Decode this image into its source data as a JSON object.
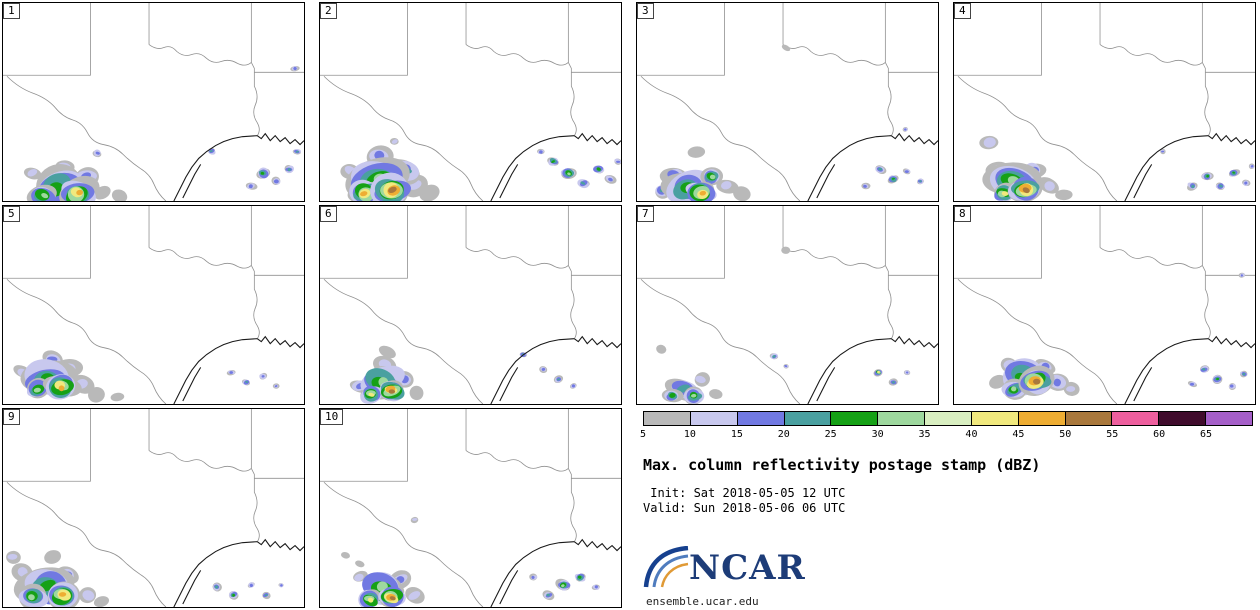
{
  "figure": {
    "title": "Max. column reflectivity postage stamp (dBZ)",
    "init_label": " Init: Sat 2018-05-05 12 UTC",
    "valid_label": "Valid: Sun 2018-05-06 06 UTC",
    "site_url": "ensemble.ucar.edu",
    "logo_text": "NCAR"
  },
  "colorbar": {
    "units": "dBZ",
    "tick_labels": [
      "5",
      "10",
      "15",
      "20",
      "25",
      "30",
      "35",
      "40",
      "45",
      "50",
      "55",
      "60",
      "65"
    ],
    "colors": [
      "#b9b9b9",
      "#c8c8ee",
      "#7179e2",
      "#4aa0a0",
      "#16a116",
      "#9ed89e",
      "#d9efc1",
      "#f1e97e",
      "#eead33",
      "#a9783c",
      "#ee5f9e",
      "#400c2c",
      "#a55fc8"
    ]
  },
  "panels": [
    {
      "label": "1",
      "cells": [
        [
          55,
          185,
          26,
          4
        ],
        [
          75,
          192,
          18,
          7
        ],
        [
          40,
          195,
          14,
          5
        ],
        [
          85,
          175,
          12,
          2
        ],
        [
          62,
          165,
          10,
          1
        ],
        [
          100,
          192,
          10,
          0
        ],
        [
          118,
          196,
          8,
          0
        ],
        [
          95,
          152,
          5,
          2
        ],
        [
          30,
          172,
          9,
          1
        ],
        [
          210,
          150,
          4,
          3
        ],
        [
          262,
          172,
          7,
          4
        ],
        [
          275,
          180,
          5,
          2
        ],
        [
          288,
          168,
          5,
          3
        ],
        [
          250,
          185,
          5,
          2
        ],
        [
          294,
          66,
          4,
          2
        ],
        [
          296,
          150,
          4,
          3
        ]
      ]
    },
    {
      "label": "2",
      "cells": [
        [
          58,
          180,
          30,
          5
        ],
        [
          72,
          190,
          20,
          8
        ],
        [
          45,
          192,
          16,
          7
        ],
        [
          85,
          170,
          14,
          3
        ],
        [
          60,
          155,
          12,
          2
        ],
        [
          95,
          185,
          12,
          1
        ],
        [
          30,
          170,
          10,
          1
        ],
        [
          110,
          192,
          9,
          0
        ],
        [
          75,
          140,
          5,
          1
        ],
        [
          235,
          160,
          6,
          4
        ],
        [
          250,
          172,
          7,
          5
        ],
        [
          265,
          182,
          6,
          3
        ],
        [
          280,
          168,
          6,
          4
        ],
        [
          292,
          178,
          5,
          2
        ],
        [
          300,
          160,
          4,
          2
        ],
        [
          222,
          150,
          4,
          2
        ]
      ]
    },
    {
      "label": "3",
      "cells": [
        [
          50,
          185,
          24,
          4
        ],
        [
          65,
          192,
          15,
          7
        ],
        [
          38,
          175,
          12,
          2
        ],
        [
          75,
          175,
          10,
          5
        ],
        [
          90,
          185,
          10,
          1
        ],
        [
          60,
          150,
          9,
          0
        ],
        [
          105,
          192,
          8,
          0
        ],
        [
          25,
          190,
          8,
          3
        ],
        [
          245,
          168,
          5,
          3
        ],
        [
          258,
          178,
          5,
          4
        ],
        [
          272,
          170,
          4,
          2
        ],
        [
          285,
          180,
          4,
          3
        ],
        [
          230,
          185,
          4,
          2
        ],
        [
          270,
          128,
          3,
          2
        ],
        [
          150,
          45,
          4,
          0
        ]
      ]
    },
    {
      "label": "4",
      "cells": [
        [
          35,
          140,
          10,
          1
        ],
        [
          60,
          180,
          26,
          5
        ],
        [
          72,
          188,
          16,
          8
        ],
        [
          50,
          192,
          12,
          6
        ],
        [
          80,
          170,
          12,
          2
        ],
        [
          95,
          185,
          10,
          1
        ],
        [
          45,
          168,
          10,
          1
        ],
        [
          110,
          194,
          8,
          0
        ],
        [
          240,
          185,
          5,
          3
        ],
        [
          255,
          175,
          5,
          4
        ],
        [
          268,
          185,
          5,
          3
        ],
        [
          282,
          172,
          5,
          4
        ],
        [
          294,
          182,
          4,
          2
        ],
        [
          300,
          165,
          3,
          2
        ],
        [
          210,
          150,
          3,
          2
        ]
      ]
    },
    {
      "label": "5",
      "cells": [
        [
          45,
          175,
          26,
          4
        ],
        [
          58,
          182,
          16,
          7
        ],
        [
          35,
          185,
          12,
          5
        ],
        [
          65,
          165,
          12,
          2
        ],
        [
          50,
          155,
          10,
          2
        ],
        [
          80,
          180,
          10,
          1
        ],
        [
          95,
          190,
          9,
          0
        ],
        [
          115,
          193,
          7,
          0
        ],
        [
          20,
          168,
          8,
          1
        ],
        [
          230,
          168,
          4,
          2
        ],
        [
          245,
          178,
          4,
          3
        ],
        [
          262,
          172,
          4,
          2
        ],
        [
          275,
          182,
          3,
          2
        ]
      ]
    },
    {
      "label": "6",
      "cells": [
        [
          62,
          178,
          22,
          5
        ],
        [
          72,
          186,
          14,
          8
        ],
        [
          52,
          190,
          12,
          6
        ],
        [
          65,
          160,
          10,
          1
        ],
        [
          68,
          148,
          8,
          0
        ],
        [
          85,
          175,
          10,
          2
        ],
        [
          98,
          188,
          8,
          0
        ],
        [
          40,
          182,
          9,
          2
        ],
        [
          205,
          150,
          4,
          3
        ],
        [
          225,
          165,
          4,
          2
        ],
        [
          240,
          175,
          4,
          3
        ],
        [
          255,
          182,
          4,
          2
        ]
      ]
    },
    {
      "label": "7",
      "cells": [
        [
          48,
          185,
          16,
          3
        ],
        [
          58,
          192,
          10,
          5
        ],
        [
          35,
          192,
          9,
          4
        ],
        [
          65,
          175,
          8,
          1
        ],
        [
          25,
          145,
          6,
          0
        ],
        [
          80,
          190,
          7,
          0
        ],
        [
          138,
          152,
          4,
          3
        ],
        [
          150,
          162,
          3,
          2
        ],
        [
          243,
          168,
          4,
          6
        ],
        [
          258,
          178,
          4,
          3
        ],
        [
          272,
          168,
          3,
          2
        ],
        [
          150,
          45,
          4,
          0
        ]
      ]
    },
    {
      "label": "8",
      "cells": [
        [
          70,
          172,
          24,
          4
        ],
        [
          82,
          178,
          16,
          8
        ],
        [
          60,
          185,
          12,
          5
        ],
        [
          92,
          162,
          10,
          2
        ],
        [
          105,
          178,
          10,
          2
        ],
        [
          55,
          160,
          9,
          1
        ],
        [
          118,
          185,
          8,
          1
        ],
        [
          45,
          178,
          8,
          0
        ],
        [
          252,
          165,
          5,
          3
        ],
        [
          265,
          175,
          5,
          4
        ],
        [
          280,
          182,
          4,
          2
        ],
        [
          292,
          170,
          4,
          3
        ],
        [
          240,
          180,
          4,
          2
        ],
        [
          290,
          70,
          3,
          2
        ]
      ]
    },
    {
      "label": "9",
      "cells": [
        [
          45,
          180,
          26,
          4
        ],
        [
          60,
          188,
          16,
          7
        ],
        [
          30,
          190,
          14,
          5
        ],
        [
          20,
          165,
          10,
          1
        ],
        [
          65,
          168,
          10,
          2
        ],
        [
          85,
          188,
          10,
          1
        ],
        [
          10,
          150,
          8,
          1
        ],
        [
          100,
          195,
          8,
          0
        ],
        [
          50,
          150,
          8,
          0
        ],
        [
          215,
          180,
          5,
          3
        ],
        [
          232,
          188,
          5,
          4
        ],
        [
          250,
          178,
          4,
          2
        ],
        [
          265,
          188,
          4,
          3
        ],
        [
          280,
          178,
          3,
          2
        ]
      ]
    },
    {
      "label": "10",
      "cells": [
        [
          25,
          148,
          5,
          0
        ],
        [
          40,
          156,
          5,
          0
        ],
        [
          95,
          112,
          4,
          1
        ],
        [
          62,
          182,
          22,
          5
        ],
        [
          72,
          190,
          14,
          8
        ],
        [
          50,
          192,
          12,
          6
        ],
        [
          80,
          172,
          10,
          2
        ],
        [
          95,
          188,
          9,
          1
        ],
        [
          40,
          170,
          8,
          1
        ],
        [
          245,
          178,
          7,
          5
        ],
        [
          262,
          170,
          6,
          4
        ],
        [
          230,
          188,
          5,
          3
        ],
        [
          278,
          180,
          4,
          2
        ],
        [
          215,
          170,
          4,
          2
        ]
      ]
    }
  ]
}
